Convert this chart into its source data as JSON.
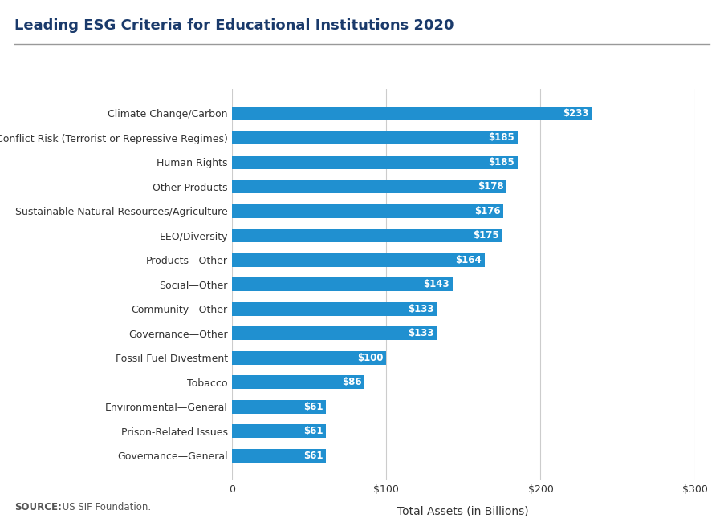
{
  "title": "Leading ESG Criteria for Educational Institutions 2020",
  "categories": [
    "Governance—General",
    "Prison-Related Issues",
    "Environmental—General",
    "Tobacco",
    "Fossil Fuel Divestment",
    "Governance—Other",
    "Community—Other",
    "Social—Other",
    "Products—Other",
    "EEO/Diversity",
    "Sustainable Natural Resources/Agriculture",
    "Other Products",
    "Human Rights",
    "Conflict Risk (Terrorist or Repressive Regimes)",
    "Climate Change/Carbon"
  ],
  "values": [
    61,
    61,
    61,
    86,
    100,
    133,
    133,
    143,
    164,
    175,
    176,
    178,
    185,
    185,
    233
  ],
  "bar_color": "#2090d0",
  "label_color": "#ffffff",
  "xlabel": "Total Assets (in Billions)",
  "source_bold": "SOURCE:",
  "source_rest": " US SIF Foundation.",
  "xlim": [
    0,
    300
  ],
  "xticks": [
    0,
    100,
    200,
    300
  ],
  "xtick_labels": [
    "0",
    "$100",
    "$200",
    "$300"
  ],
  "background_color": "#ffffff",
  "title_color": "#1a3a6b",
  "bar_height": 0.55,
  "title_fontsize": 13,
  "label_fontsize": 8.5,
  "tick_fontsize": 9,
  "xlabel_fontsize": 10,
  "source_fontsize": 8.5,
  "grid_color": "#cccccc"
}
